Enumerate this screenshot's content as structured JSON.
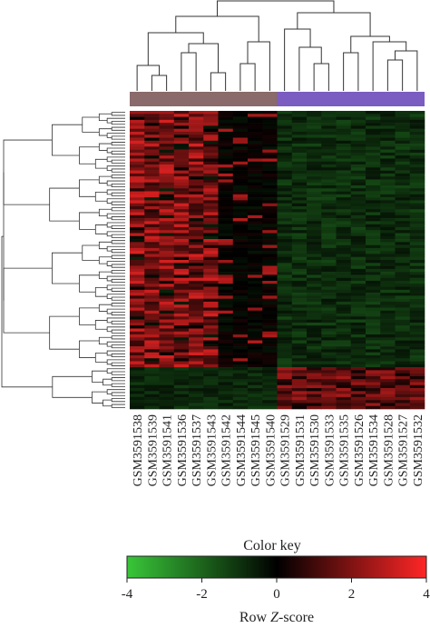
{
  "chart_data": {
    "type": "heatmap",
    "columns": [
      "GSM3591538",
      "GSM3591539",
      "GSM3591541",
      "GSM3591536",
      "GSM3591537",
      "GSM3591543",
      "GSM3591542",
      "GSM3591544",
      "GSM3591545",
      "GSM3591540",
      "GSM3591529",
      "GSM3591531",
      "GSM3591530",
      "GSM3591533",
      "GSM3591535",
      "GSM3591526",
      "GSM3591534",
      "GSM3591528",
      "GSM3591527",
      "GSM3591532"
    ],
    "column_groups": [
      {
        "start": 0,
        "end": 9,
        "color": "#8a6a6a"
      },
      {
        "start": 10,
        "end": 19,
        "color": "#7b5cc0"
      }
    ],
    "n_rows": 100,
    "color_scale": {
      "min": -4,
      "max": 4,
      "low": "#39c739",
      "mid": "#000000",
      "high": "#ff2626"
    },
    "color_key": {
      "title": "Color key",
      "ticks": [
        "-4",
        "-2",
        "0",
        "2",
        "4"
      ],
      "xlabel_prefix": "Row ",
      "xlabel_italic": "Z",
      "xlabel_suffix": "-score"
    },
    "row_dendrogram": true,
    "column_dendrogram": true
  }
}
